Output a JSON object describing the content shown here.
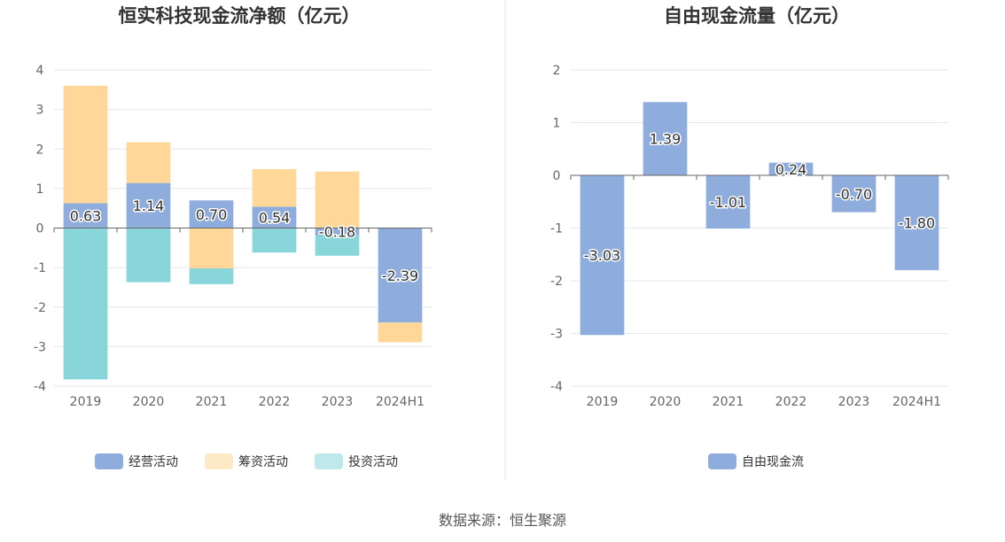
{
  "source_text": "数据来源：恒生聚源",
  "chart_data": [
    {
      "type": "bar",
      "stacked": true,
      "title": "恒实科技现金流净额（亿元）",
      "categories": [
        "2019",
        "2020",
        "2021",
        "2022",
        "2023",
        "2024H1"
      ],
      "ylim": [
        -4,
        4
      ],
      "yticks": [
        "4",
        "3",
        "2",
        "1",
        "0",
        "-1",
        "-2",
        "-3",
        "-4"
      ],
      "grid": true,
      "legend_position": "bottom",
      "series": [
        {
          "name": "经营活动",
          "color": "#8eacdc",
          "values": [
            0.63,
            1.14,
            0.7,
            0.54,
            -0.18,
            -2.39
          ],
          "labels": [
            "0.63",
            "1.14",
            "0.70",
            "0.54",
            "-0.18",
            "-2.39"
          ]
        },
        {
          "name": "筹资活动",
          "color": "#ffd899",
          "values": [
            2.97,
            1.03,
            -1.02,
            0.95,
            1.43,
            -0.5
          ]
        },
        {
          "name": "投资活动",
          "color": "#88d6d9",
          "values": [
            -3.83,
            -1.37,
            -0.4,
            -0.62,
            -0.52,
            0
          ]
        }
      ]
    },
    {
      "type": "bar",
      "title": "自由现金流量（亿元）",
      "categories": [
        "2019",
        "2020",
        "2021",
        "2022",
        "2023",
        "2024H1"
      ],
      "ylim": [
        -4,
        2
      ],
      "yticks": [
        "2",
        "1",
        "0",
        "-1",
        "-2",
        "-3",
        "-4"
      ],
      "grid": true,
      "legend_position": "bottom",
      "series": [
        {
          "name": "自由现金流",
          "color": "#8eacdc",
          "values": [
            -3.03,
            1.39,
            -1.01,
            0.24,
            -0.7,
            -1.8
          ],
          "labels": [
            "-3.03",
            "1.39",
            "-1.01",
            "0.24",
            "-0.70",
            "-1.80"
          ]
        }
      ]
    }
  ]
}
